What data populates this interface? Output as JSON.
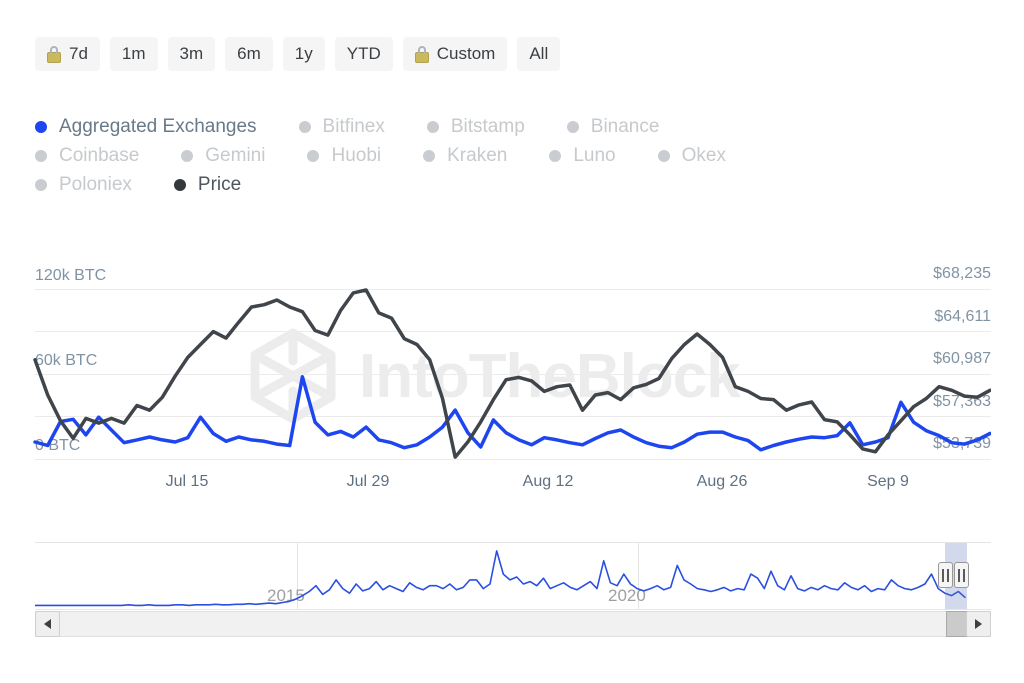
{
  "toolbar": {
    "buttons": [
      {
        "label": "7d",
        "locked": true
      },
      {
        "label": "1m",
        "locked": false
      },
      {
        "label": "3m",
        "locked": false
      },
      {
        "label": "6m",
        "locked": false
      },
      {
        "label": "1y",
        "locked": false
      },
      {
        "label": "YTD",
        "locked": false
      },
      {
        "label": "Custom",
        "locked": true
      },
      {
        "label": "All",
        "locked": false
      }
    ]
  },
  "legend": {
    "text_colors": {
      "active": "#68798a",
      "price": "#4d5560",
      "inactive": "#c6cacd"
    },
    "rows": [
      [
        {
          "label": "Aggregated Exchanges",
          "state": "active",
          "dot": "#1e46f0"
        },
        {
          "label": "Bitfinex",
          "state": "inactive",
          "dot": "#c9cdd1"
        },
        {
          "label": "Bitstamp",
          "state": "inactive",
          "dot": "#c9cdd1"
        },
        {
          "label": "Binance",
          "state": "inactive",
          "dot": "#c9cdd1"
        }
      ],
      [
        {
          "label": "Coinbase",
          "state": "inactive",
          "dot": "#c9cdd1"
        },
        {
          "label": "Gemini",
          "state": "inactive",
          "dot": "#c9cdd1"
        },
        {
          "label": "Huobi",
          "state": "inactive",
          "dot": "#c9cdd1"
        },
        {
          "label": "Kraken",
          "state": "inactive",
          "dot": "#c9cdd1"
        },
        {
          "label": "Luno",
          "state": "inactive",
          "dot": "#c9cdd1"
        },
        {
          "label": "Okex",
          "state": "inactive",
          "dot": "#c9cdd1"
        }
      ],
      [
        {
          "label": "Poloniex",
          "state": "inactive",
          "dot": "#c9cdd1"
        },
        {
          "label": "Price",
          "state": "price",
          "dot": "#34383c"
        }
      ]
    ]
  },
  "watermark": {
    "text": "IntoTheBlock"
  },
  "chart_data": [
    {
      "type": "line",
      "grid": true,
      "legend_position": "top",
      "x_tick_labels": [
        "Jul 15",
        "Jul 29",
        "Aug 12",
        "Aug 26",
        "Sep 9"
      ],
      "left_axis": {
        "tick_labels": [
          "120k BTC",
          "60k BTC",
          "0 BTC"
        ],
        "tick_values": [
          120000,
          60000,
          0
        ],
        "range": [
          0,
          120000
        ]
      },
      "right_axis": {
        "tick_labels": [
          "$68,235",
          "$64,611",
          "$60,987",
          "$57,363",
          "$53,739"
        ],
        "tick_values": [
          68235,
          64611,
          60987,
          57363,
          53739
        ],
        "range": [
          53739,
          68235
        ]
      },
      "series": [
        {
          "name": "Aggregated Exchanges",
          "unit": "BTC",
          "color": "#1e46f0",
          "values": [
            12000,
            9500,
            26500,
            28000,
            17000,
            29500,
            20500,
            11500,
            13500,
            15500,
            13500,
            12000,
            15000,
            29500,
            18000,
            12500,
            15500,
            13500,
            12500,
            10500,
            9500,
            58000,
            26000,
            17000,
            19500,
            15500,
            22500,
            13500,
            11500,
            8000,
            10000,
            15500,
            22500,
            34500,
            18500,
            8500,
            27500,
            18500,
            13500,
            10000,
            15000,
            13500,
            11500,
            10000,
            14500,
            18500,
            20500,
            15500,
            11500,
            9000,
            8000,
            12000,
            17500,
            19000,
            19000,
            15500,
            13000,
            6500,
            9500,
            12000,
            14000,
            15500,
            15000,
            16500,
            25500,
            10000,
            12000,
            15000,
            40000,
            26000,
            20000,
            16500,
            11500,
            10500,
            13500,
            18000
          ]
        },
        {
          "name": "Price",
          "unit": "USD",
          "color": "#3f454b",
          "values": [
            62200,
            59200,
            57000,
            55500,
            57200,
            56800,
            57200,
            56800,
            58300,
            57900,
            59000,
            60800,
            62400,
            63500,
            64600,
            64050,
            65400,
            66700,
            66900,
            67300,
            66700,
            66300,
            64700,
            64300,
            66400,
            67900,
            68150,
            66200,
            65750,
            64000,
            63500,
            62200,
            58900,
            53900,
            55200,
            56900,
            58800,
            60500,
            60700,
            60400,
            59500,
            59900,
            60050,
            57900,
            59200,
            59400,
            58800,
            59800,
            60100,
            60600,
            62300,
            63500,
            64400,
            63500,
            62400,
            59900,
            59500,
            58900,
            58800,
            57900,
            58350,
            58600,
            57100,
            56900,
            55800,
            54600,
            54350,
            55800,
            57000,
            58200,
            58900,
            59900,
            59600,
            59100,
            59000,
            59600
          ]
        }
      ]
    },
    {
      "type": "line",
      "role": "navigator",
      "color": "#2b4fe0",
      "x_tick_labels": [
        "2015",
        "2020"
      ],
      "values": [
        1,
        1,
        1,
        1,
        1,
        1,
        1,
        1,
        1,
        1,
        1,
        1,
        1,
        1,
        2,
        1,
        1,
        2,
        1,
        1,
        1,
        2,
        2,
        1,
        2,
        2,
        2,
        3,
        2,
        2,
        3,
        3,
        4,
        3,
        4,
        5,
        4,
        6,
        8,
        12,
        18,
        25,
        35,
        20,
        28,
        45,
        30,
        22,
        38,
        26,
        30,
        42,
        28,
        35,
        30,
        25,
        40,
        32,
        28,
        35,
        35,
        30,
        38,
        28,
        32,
        45,
        45,
        30,
        38,
        95,
        55,
        45,
        50,
        38,
        42,
        35,
        48,
        30,
        35,
        40,
        32,
        28,
        35,
        42,
        30,
        78,
        40,
        35,
        55,
        38,
        30,
        26,
        30,
        35,
        28,
        32,
        70,
        45,
        38,
        30,
        28,
        25,
        28,
        32,
        26,
        30,
        28,
        55,
        48,
        30,
        60,
        35,
        28,
        52,
        30,
        26,
        32,
        28,
        35,
        30,
        28,
        40,
        32,
        28,
        35,
        25,
        30,
        28,
        45,
        35,
        30,
        28,
        32,
        38,
        55,
        30,
        22,
        18,
        25,
        15
      ]
    }
  ]
}
